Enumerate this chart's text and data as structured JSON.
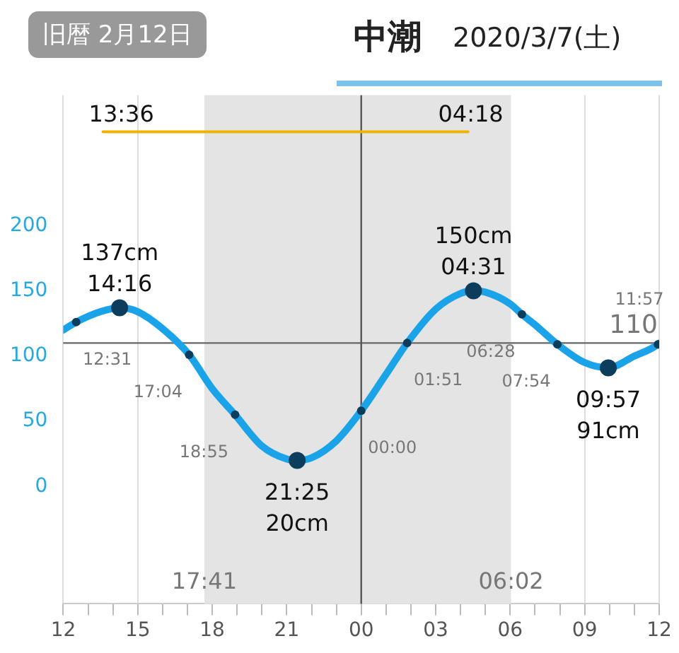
{
  "chart_data": {
    "type": "line",
    "title": "中潮",
    "subtitle": "2020/3/7(土)",
    "annotations": [
      "旧暦 2月12日",
      {
        "text": "17:41",
        "x": 17.683,
        "y": -72
      },
      {
        "text": "06:02",
        "x": 30.033,
        "y": -72
      },
      {
        "text": "13:36",
        "x": 13.6,
        "y": 272
      },
      {
        "text": "04:18",
        "x": 28.3,
        "y": 272
      },
      {
        "text": "12:31",
        "x": 12.52,
        "y": 126
      },
      {
        "text": "14:16",
        "x": 14.27,
        "y": 137
      },
      {
        "text": "17:04",
        "x": 17.07,
        "y": 101
      },
      {
        "text": "18:55",
        "x": 18.92,
        "y": 55
      },
      {
        "text": "21:25",
        "x": 21.42,
        "y": 20
      },
      {
        "text": "00:00",
        "x": 24,
        "y": 58
      },
      {
        "text": "01:51",
        "x": 25.85,
        "y": 110
      },
      {
        "text": "04:31",
        "x": 28.52,
        "y": 150
      },
      {
        "text": "06:28",
        "x": 30.47,
        "y": 132
      },
      {
        "text": "07:54",
        "x": 31.9,
        "y": 109
      },
      {
        "text": "09:57",
        "x": 33.95,
        "y": 91
      },
      {
        "text": "11:57",
        "x": 35.95,
        "y": 109
      }
    ],
    "xlim": [
      12,
      36
    ],
    "xticks": [
      {
        "value": 12,
        "label": "12"
      },
      {
        "value": 13,
        "label": null
      },
      {
        "value": 14,
        "label": null
      },
      {
        "value": 15,
        "label": "15"
      },
      {
        "value": 16,
        "label": null
      },
      {
        "value": 17,
        "label": null
      },
      {
        "value": 18,
        "label": "18"
      },
      {
        "value": 19,
        "label": null
      },
      {
        "value": 20,
        "label": null
      },
      {
        "value": 21,
        "label": "21"
      },
      {
        "value": 22,
        "label": null
      },
      {
        "value": 23,
        "label": null
      },
      {
        "value": 24,
        "label": "00"
      },
      {
        "value": 25,
        "label": null
      },
      {
        "value": 26,
        "label": null
      },
      {
        "value": 27,
        "label": "03"
      },
      {
        "value": 28,
        "label": null
      },
      {
        "value": 29,
        "label": null
      },
      {
        "value": 30,
        "label": "06"
      },
      {
        "value": 31,
        "label": null
      },
      {
        "value": 32,
        "label": null
      },
      {
        "value": 33,
        "label": "09"
      },
      {
        "value": 34,
        "label": null
      },
      {
        "value": 35,
        "label": null
      },
      {
        "value": 36,
        "label": "12"
      }
    ],
    "ylim": [
      -90,
      300
    ],
    "yticks": [
      0,
      50,
      100,
      150,
      200
    ],
    "grid": "x",
    "legend": false,
    "line_style": "solid",
    "bands": [
      {
        "axis": "x",
        "from": 17.683,
        "to": 30.033,
        "color": "#e4e4e4"
      }
    ],
    "ref_lines": [
      {
        "axis": "y",
        "value": 110,
        "label": "110",
        "color": "#666666"
      },
      {
        "axis": "x",
        "value": 24,
        "color": "#555555"
      }
    ],
    "series": [
      {
        "color": "#1aa3e8",
        "x": [
          12,
          12.52,
          13.5,
          14.27,
          15,
          16,
          17.07,
          18,
          18.92,
          20,
          21,
          21.42,
          22,
          23,
          24,
          25,
          25.85,
          27,
          28,
          28.52,
          29,
          30,
          30.47,
          31,
          31.9,
          33,
          33.95,
          35,
          35.95,
          36
        ],
        "values": [
          120,
          126,
          134,
          137,
          134,
          121,
          101,
          75,
          55,
          31,
          21,
          20,
          22,
          35,
          58,
          86,
          110,
          136,
          148,
          150,
          149,
          140,
          132,
          124,
          109,
          95,
          91,
          100,
          109,
          110
        ],
        "value_labels": [
          null,
          null,
          null,
          "137cm",
          null,
          null,
          null,
          null,
          null,
          null,
          null,
          "20cm",
          null,
          null,
          null,
          null,
          null,
          null,
          null,
          "150cm",
          null,
          null,
          null,
          null,
          null,
          null,
          "91cm",
          null,
          null,
          null
        ]
      },
      {
        "color": "#f0b400",
        "x": [
          13.6,
          28.3
        ],
        "values": [
          272,
          272
        ]
      }
    ]
  }
}
